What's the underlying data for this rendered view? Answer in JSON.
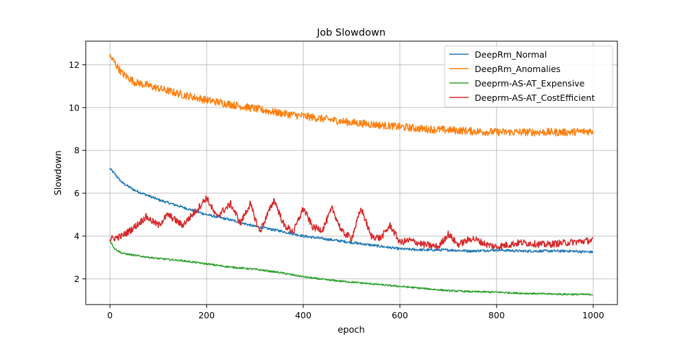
{
  "chart_data": {
    "type": "line",
    "title": "Job Slowdown",
    "xlabel": "epoch",
    "ylabel": "Slowdown",
    "xlim": [
      -50,
      1050
    ],
    "ylim": [
      0.8,
      13.1
    ],
    "xticks": [
      0,
      200,
      400,
      600,
      800,
      1000
    ],
    "yticks": [
      2,
      4,
      6,
      8,
      10,
      12
    ],
    "grid": true,
    "legend_position": "top-right",
    "series": [
      {
        "name": "DeepRm_Normal",
        "color": "#1f77b4",
        "noise": 0.06,
        "points": [
          [
            0,
            7.15
          ],
          [
            10,
            6.9
          ],
          [
            25,
            6.5
          ],
          [
            50,
            6.15
          ],
          [
            100,
            5.7
          ],
          [
            150,
            5.35
          ],
          [
            200,
            5.0
          ],
          [
            250,
            4.75
          ],
          [
            300,
            4.45
          ],
          [
            350,
            4.25
          ],
          [
            400,
            4.0
          ],
          [
            450,
            3.85
          ],
          [
            500,
            3.7
          ],
          [
            550,
            3.55
          ],
          [
            600,
            3.4
          ],
          [
            650,
            3.35
          ],
          [
            700,
            3.35
          ],
          [
            750,
            3.3
          ],
          [
            800,
            3.35
          ],
          [
            850,
            3.3
          ],
          [
            900,
            3.3
          ],
          [
            950,
            3.3
          ],
          [
            999,
            3.25
          ]
        ]
      },
      {
        "name": "DeepRm_Anomalies",
        "color": "#ff7f0e",
        "noise": 0.18,
        "points": [
          [
            0,
            12.4
          ],
          [
            10,
            12.1
          ],
          [
            25,
            11.6
          ],
          [
            50,
            11.2
          ],
          [
            100,
            10.9
          ],
          [
            150,
            10.6
          ],
          [
            200,
            10.35
          ],
          [
            250,
            10.15
          ],
          [
            300,
            9.95
          ],
          [
            350,
            9.75
          ],
          [
            400,
            9.6
          ],
          [
            450,
            9.45
          ],
          [
            500,
            9.3
          ],
          [
            550,
            9.2
          ],
          [
            600,
            9.1
          ],
          [
            650,
            9.0
          ],
          [
            700,
            8.95
          ],
          [
            750,
            8.9
          ],
          [
            800,
            8.85
          ],
          [
            850,
            8.85
          ],
          [
            900,
            8.85
          ],
          [
            950,
            8.85
          ],
          [
            999,
            8.9
          ]
        ]
      },
      {
        "name": "Deeprm-AS-AT_Expensive",
        "color": "#2ca02c",
        "noise": 0.04,
        "points": [
          [
            0,
            3.8
          ],
          [
            10,
            3.4
          ],
          [
            25,
            3.2
          ],
          [
            50,
            3.1
          ],
          [
            100,
            2.95
          ],
          [
            150,
            2.85
          ],
          [
            200,
            2.7
          ],
          [
            250,
            2.55
          ],
          [
            300,
            2.45
          ],
          [
            350,
            2.3
          ],
          [
            400,
            2.1
          ],
          [
            450,
            1.95
          ],
          [
            500,
            1.85
          ],
          [
            550,
            1.75
          ],
          [
            600,
            1.65
          ],
          [
            650,
            1.55
          ],
          [
            700,
            1.45
          ],
          [
            750,
            1.4
          ],
          [
            800,
            1.38
          ],
          [
            850,
            1.33
          ],
          [
            900,
            1.3
          ],
          [
            950,
            1.28
          ],
          [
            999,
            1.27
          ]
        ]
      },
      {
        "name": "Deeprm-AS-AT_CostEfficient",
        "color": "#d62728",
        "noise": 0.16,
        "points": [
          [
            0,
            3.85
          ],
          [
            25,
            4.0
          ],
          [
            50,
            4.4
          ],
          [
            75,
            4.9
          ],
          [
            100,
            4.5
          ],
          [
            120,
            5.0
          ],
          [
            150,
            4.5
          ],
          [
            175,
            5.1
          ],
          [
            200,
            5.8
          ],
          [
            220,
            4.9
          ],
          [
            250,
            5.5
          ],
          [
            270,
            4.6
          ],
          [
            290,
            5.5
          ],
          [
            310,
            4.2
          ],
          [
            340,
            5.7
          ],
          [
            360,
            4.5
          ],
          [
            380,
            4.2
          ],
          [
            400,
            5.3
          ],
          [
            420,
            4.4
          ],
          [
            440,
            4.3
          ],
          [
            460,
            5.3
          ],
          [
            480,
            4.2
          ],
          [
            500,
            3.9
          ],
          [
            520,
            5.3
          ],
          [
            540,
            4.0
          ],
          [
            560,
            3.9
          ],
          [
            580,
            4.5
          ],
          [
            600,
            3.7
          ],
          [
            620,
            3.8
          ],
          [
            650,
            3.6
          ],
          [
            680,
            3.5
          ],
          [
            700,
            4.1
          ],
          [
            720,
            3.6
          ],
          [
            750,
            3.9
          ],
          [
            780,
            3.6
          ],
          [
            800,
            3.5
          ],
          [
            850,
            3.7
          ],
          [
            900,
            3.6
          ],
          [
            950,
            3.7
          ],
          [
            999,
            3.8
          ]
        ]
      }
    ]
  }
}
